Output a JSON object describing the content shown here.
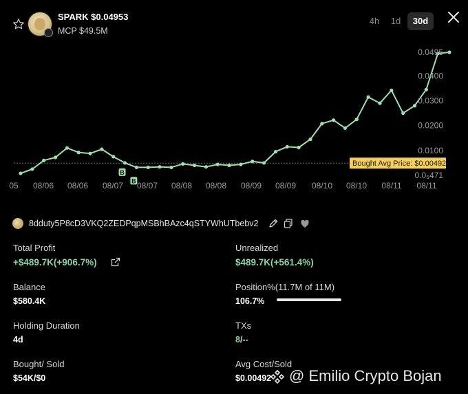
{
  "header": {
    "title": "SPARK  $0.04953",
    "mcap": "MCP $49.5M",
    "timeframes": [
      {
        "label": "4h",
        "active": false
      },
      {
        "label": "1d",
        "active": false
      },
      {
        "label": "30d",
        "active": true
      }
    ]
  },
  "chart_data": {
    "type": "line",
    "x_tick_labels": [
      "05",
      "08/06",
      "08/06",
      "08/07",
      "08/07",
      "08/08",
      "08/08",
      "08/09",
      "08/09",
      "08/10",
      "08/10",
      "08/11",
      "08/11"
    ],
    "y_tick_labels": [
      "0.0495",
      "0.0400",
      "0.0300",
      "0.0200",
      "0.0100",
      "0.0₅471"
    ],
    "reference_line": {
      "label": "Bought Avg Price: $0.00492",
      "value": 0.00492
    },
    "markers": [
      {
        "label": "B",
        "index": 9
      },
      {
        "label": "B",
        "index": 10
      }
    ],
    "values": [
      0.0008,
      0.0025,
      0.006,
      0.0072,
      0.011,
      0.0092,
      0.0088,
      0.0105,
      0.0075,
      0.005,
      0.0032,
      0.0032,
      0.0034,
      0.0032,
      0.0046,
      0.004,
      0.0034,
      0.0044,
      0.004,
      0.0044,
      0.0056,
      0.005,
      0.0095,
      0.0115,
      0.0112,
      0.0145,
      0.0208,
      0.0222,
      0.019,
      0.0225,
      0.0315,
      0.029,
      0.0342,
      0.025,
      0.028,
      0.0345,
      0.049,
      0.0495
    ],
    "line_color": "#9fe0b0",
    "ref_color": "#f5d060"
  },
  "wallet": {
    "address": "8dduty5P8cD3VKQ2ZEDPqpMSBhBAzc4qSTYWhUTbebv2"
  },
  "stats": {
    "total_profit_label": "Total Profit",
    "total_profit_value": "+$489.7K(+906.7%)",
    "unrealized_label": "Unrealized",
    "unrealized_value": "$489.7K(+561.4%)",
    "balance_label": "Balance",
    "balance_value": "$580.4K",
    "position_label": "Position%(11.7M of 11M)",
    "position_value": "106.7%",
    "position_fill": 1.0,
    "holding_label": "Holding Duration",
    "holding_value": "4d",
    "txs_label": "TXs",
    "txs_value_green": "8",
    "txs_value_rest": "/--",
    "bought_sold_label": "Bought/ Sold",
    "bought_sold_value": "$54K/$0",
    "avg_cost_label": "Avg Cost/Sold",
    "avg_cost_value": "$0.00492"
  },
  "watermark": {
    "text": "@ Emilio Crypto Bojan"
  }
}
